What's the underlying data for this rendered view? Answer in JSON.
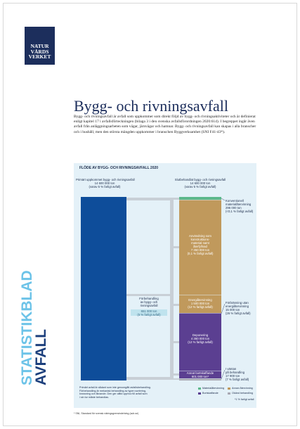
{
  "logo": [
    "NATUR",
    "VÅRDS",
    "VERKET"
  ],
  "title": "Bygg- och rivningsavfall",
  "intro": "Bygg- och rivningsavfall är avfall som uppkommer som direkt följd av bygg- och rivningsaktiviteter och är definierat enligt kapitel 17 i avfallsförteckningen (bilaga 3 i den svenska avfallsförordningen 2020:614). I begreppet ingår även avfall från anläggningsarbeten som vägar, järnvägar och hamnar. Bygg- och rivningsavfall kan skapas i alla branscher och i hushåll, men den största mängden uppkommer i branschen Byggverksamhet (SNI F41-43*).",
  "infographic": {
    "title": "FLÖDE AV BYGG- OCH RIVNINGSAVFALL 2020",
    "left_heading": [
      "Primärt uppkommet bygg- och rivningsavfall",
      "14 600 000 ton",
      "(varav 5 % farligt avfall)"
    ],
    "right_heading": [
      "Slutbehandlat bygg- och rivningsavfall",
      "14 600 000 ton",
      "(varav 5 % farligt avfall)"
    ],
    "pretreatment": [
      "Förbehandling",
      "av bygg- och",
      "rivningsavfall"
    ],
    "pretreatment_amount": [
      "651 000 ton",
      "(5 % farligt avfall)"
    ],
    "construction": [
      "Användning som",
      "konstruktions-",
      "material samt",
      "återfyllnad",
      "7 350 000 ton",
      "(0,1 % farligt avfall)"
    ],
    "energy": [
      "Energiåtervinning",
      "1 500 000 ton",
      "(12 % farligt avfall)"
    ],
    "landfill": [
      "Deponering",
      "4 360 000 ton",
      "(12 % farligt avfall)"
    ],
    "other_disposal": [
      "Annat bortskaffande",
      "601 000 ton*"
    ],
    "recycling": [
      "Konventionell",
      "materialåtervinning",
      "296 000 ton",
      "(<0,1 % farligt avfall)"
    ],
    "incineration": [
      "Förbränning utan",
      "energiåtervinning",
      "15 000 ton",
      "(26 % farligt avfall)"
    ],
    "waiting": [
      "I väntan",
      "på behandling",
      "17 900 ton",
      "(7 % farligt avfall)"
    ],
    "notes": [
      "Primärt avfall är sådant som inte genomgått avfallsbehandling.",
      "Förbehandling är mekanisk behandling av typen sortering,",
      "krossning och liknande. Den ger alltid upphov till avfall som",
      "i sin tur måste behandlas."
    ],
    "legend": [
      "Materialåtervinning",
      "Annan återvinning",
      "Bortskaffande",
      "Okänd behandling"
    ],
    "legend_note": "*1 % farligt avfall"
  },
  "side_label": [
    "STATISTIKBLAD",
    "AVFALL"
  ],
  "footnote": "* SNI, Standard för svensk näringsgrensindelning (scb.se)"
}
